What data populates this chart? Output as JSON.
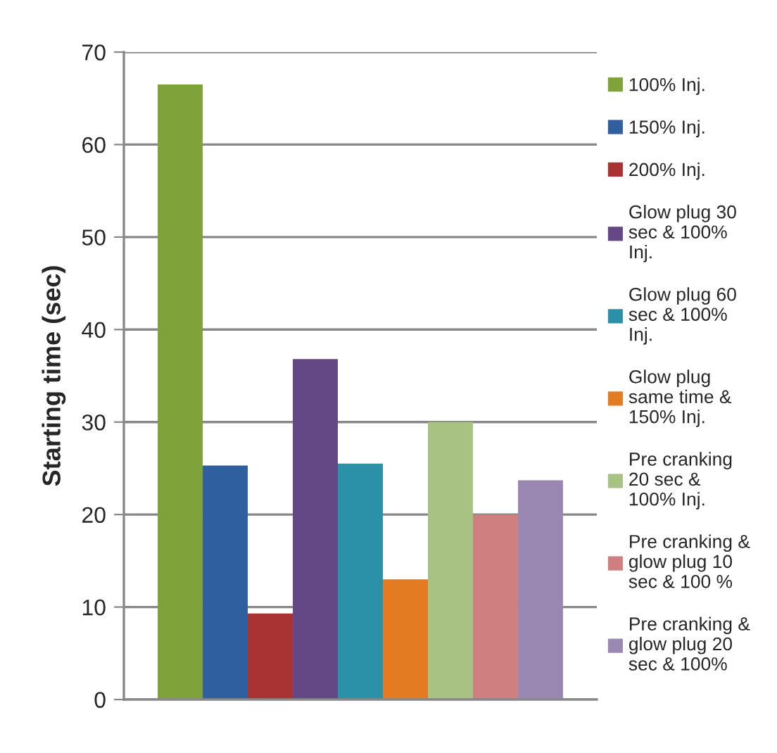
{
  "chart_data": {
    "type": "bar",
    "ylabel": "Starting time (sec)",
    "categories": [
      null
    ],
    "series": [
      {
        "name": "100% Inj.",
        "color": "#7fa33a",
        "values": [
          66.5
        ]
      },
      {
        "name": "150% Inj.",
        "color": "#2f5f9f",
        "values": [
          25.3
        ]
      },
      {
        "name": "200% Inj.",
        "color": "#a93232",
        "values": [
          9.3
        ]
      },
      {
        "name": "Glow plug 30\nsec & 100%\nInj.",
        "color": "#644785",
        "values": [
          36.8
        ]
      },
      {
        "name": "Glow plug 60\nsec & 100%\nInj.",
        "color": "#2a91a9",
        "values": [
          25.5
        ]
      },
      {
        "name": "Glow plug\nsame time &\n150% Inj.",
        "color": "#e27b22",
        "values": [
          13.0
        ]
      },
      {
        "name": "Pre cranking\n20 sec &\n100% Inj.",
        "color": "#a8c284",
        "values": [
          30.0
        ]
      },
      {
        "name": "Pre cranking &\nglow plug 10\nsec & 100 %",
        "color": "#cf7f7f",
        "values": [
          20.0
        ]
      },
      {
        "name": "Pre cranking &\nglow plug 20\nsec & 100%",
        "color": "#9a88b3",
        "values": [
          23.7
        ]
      }
    ],
    "ylim": [
      0,
      70
    ],
    "yticks": [
      0,
      10,
      20,
      30,
      40,
      50,
      60,
      70
    ],
    "grid": "y",
    "legend": "right"
  }
}
